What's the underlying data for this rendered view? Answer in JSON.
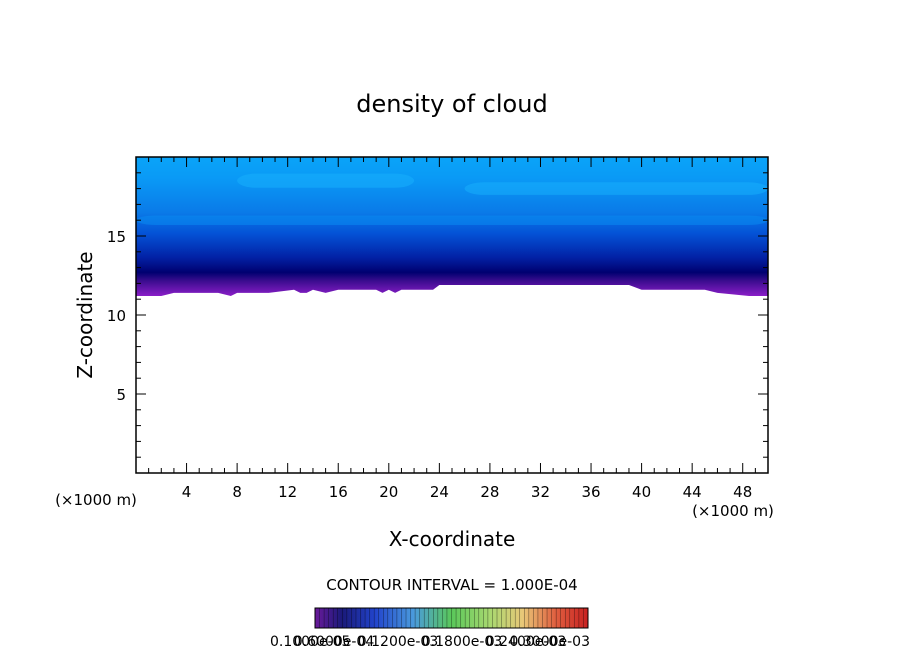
{
  "chart_data": {
    "type": "heatmap",
    "title": "density of cloud",
    "xlabel": "X-coordinate",
    "ylabel": "Z-coordinate",
    "x_unit_left": "(×1000 m)",
    "x_unit_right": "(×1000 m)",
    "xlim": [
      0,
      50
    ],
    "ylim": [
      0,
      20
    ],
    "x_ticks": [
      4,
      8,
      12,
      16,
      20,
      24,
      28,
      32,
      36,
      40,
      44,
      48
    ],
    "y_ticks": [
      5,
      10,
      15
    ],
    "cloud_top_z": 20,
    "cloud_base_profile": {
      "x": [
        0,
        2,
        3,
        6.5,
        7.5,
        8,
        10.5,
        12.5,
        13,
        13.5,
        14,
        15,
        16,
        19,
        19.5,
        20,
        20.5,
        21,
        23.5,
        24,
        39,
        40,
        45,
        46,
        48.5,
        50
      ],
      "z": [
        11.2,
        11.2,
        11.4,
        11.4,
        11.2,
        11.4,
        11.4,
        11.6,
        11.4,
        11.4,
        11.6,
        11.4,
        11.6,
        11.6,
        11.4,
        11.6,
        11.4,
        11.6,
        11.6,
        11.9,
        11.9,
        11.6,
        11.6,
        11.4,
        11.2,
        11.2
      ]
    },
    "contour_interval": "CONTOUR INTERVAL = 1.000E-04",
    "colorbar_labels": [
      "0.1000e-05",
      "0.6000e-04",
      "0.1200e-03",
      "0.1800e-03",
      "0.2400e-03",
      "0.3000e-03"
    ],
    "colors": {
      "upper": "#0ea4fa",
      "mid": "#0050d8",
      "dense": "#000066",
      "base": "#8a1ec8"
    }
  }
}
